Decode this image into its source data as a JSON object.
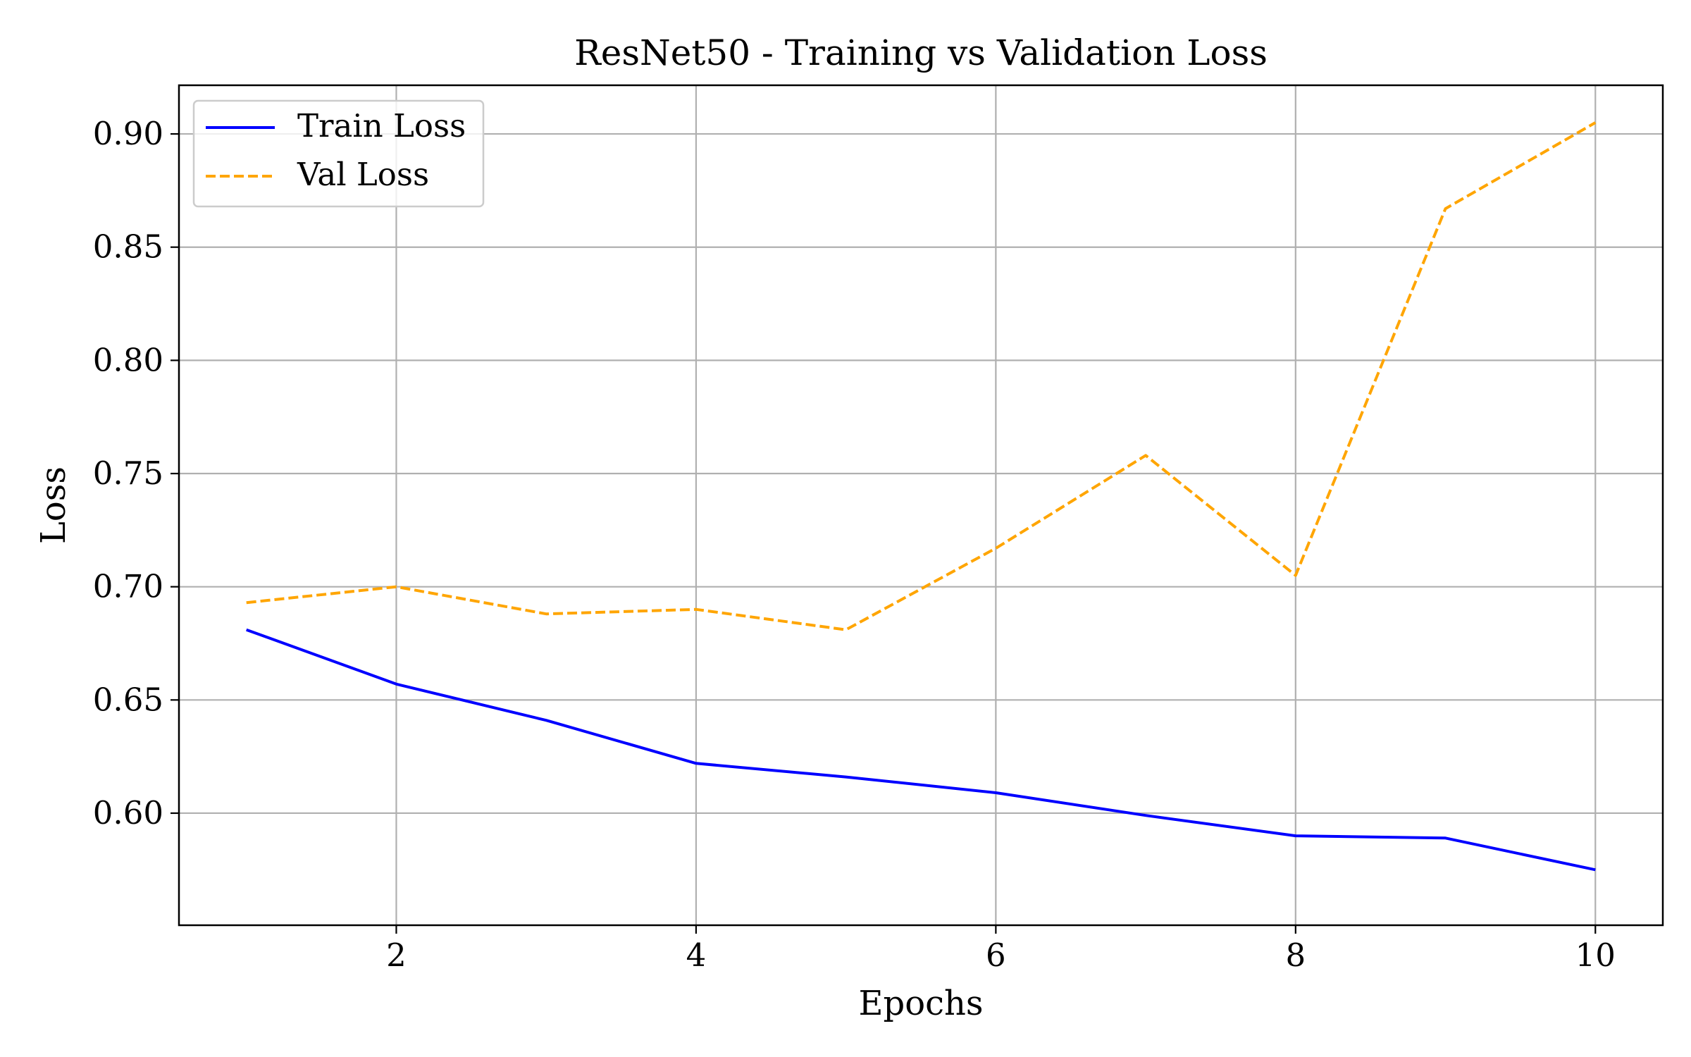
{
  "chart_data": {
    "type": "line",
    "title": "ResNet50 - Training vs Validation Loss",
    "xlabel": "Epochs",
    "ylabel": "Loss",
    "xlim": [
      0.55,
      10.45
    ],
    "ylim": [
      0.5505,
      0.9215
    ],
    "xticks": [
      2,
      4,
      6,
      8,
      10
    ],
    "xtick_labels": [
      "2",
      "4",
      "6",
      "8",
      "10"
    ],
    "yticks": [
      0.6,
      0.65,
      0.7,
      0.75,
      0.8,
      0.85,
      0.9
    ],
    "ytick_labels": [
      "0.60",
      "0.65",
      "0.70",
      "0.75",
      "0.80",
      "0.85",
      "0.90"
    ],
    "grid": true,
    "legend_position": "top-left",
    "x": [
      1,
      2,
      3,
      4,
      5,
      6,
      7,
      8,
      9,
      10
    ],
    "series": [
      {
        "name": "Train Loss",
        "color": "#0000ff",
        "style": "solid",
        "values": [
          0.681,
          0.657,
          0.641,
          0.622,
          0.616,
          0.609,
          0.599,
          0.59,
          0.589,
          0.575
        ]
      },
      {
        "name": "Val Loss",
        "color": "#ffa500",
        "style": "dashed",
        "values": [
          0.693,
          0.7,
          0.688,
          0.69,
          0.681,
          0.717,
          0.758,
          0.705,
          0.867,
          0.905
        ]
      }
    ]
  }
}
